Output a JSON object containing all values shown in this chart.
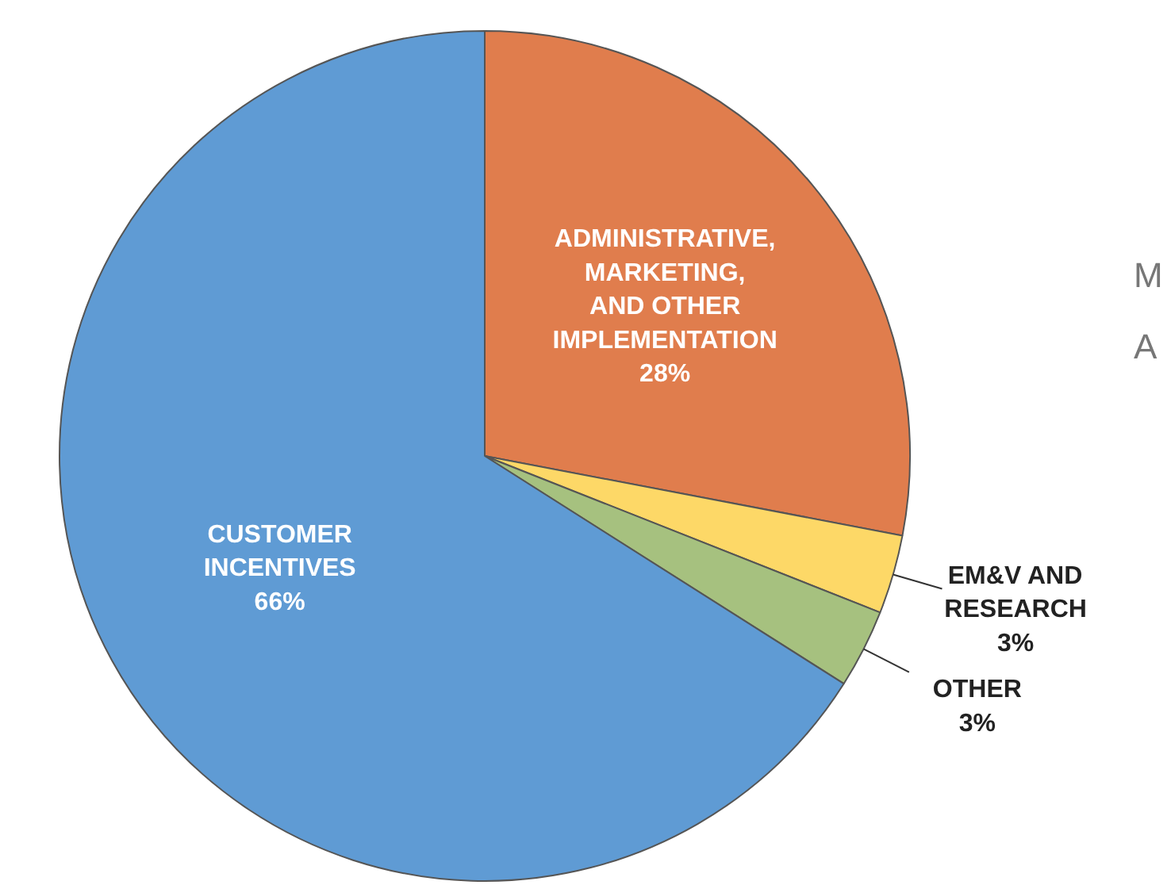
{
  "chart_data": {
    "type": "pie",
    "categories": [
      "ADMINISTRATIVE,\nMARKETING,\nAND OTHER\nIMPLEMENTATION",
      "EM&V AND\nRESEARCH",
      "OTHER",
      "CUSTOMER\nINCENTIVES"
    ],
    "values": [
      28,
      3,
      3,
      66
    ],
    "colors": [
      "#e07d4d",
      "#fdd867",
      "#a6c17f",
      "#5f9bd4"
    ],
    "value_labels": [
      "28%",
      "3%",
      "3%",
      "66%"
    ],
    "annotations": [
      "M",
      "A"
    ]
  }
}
